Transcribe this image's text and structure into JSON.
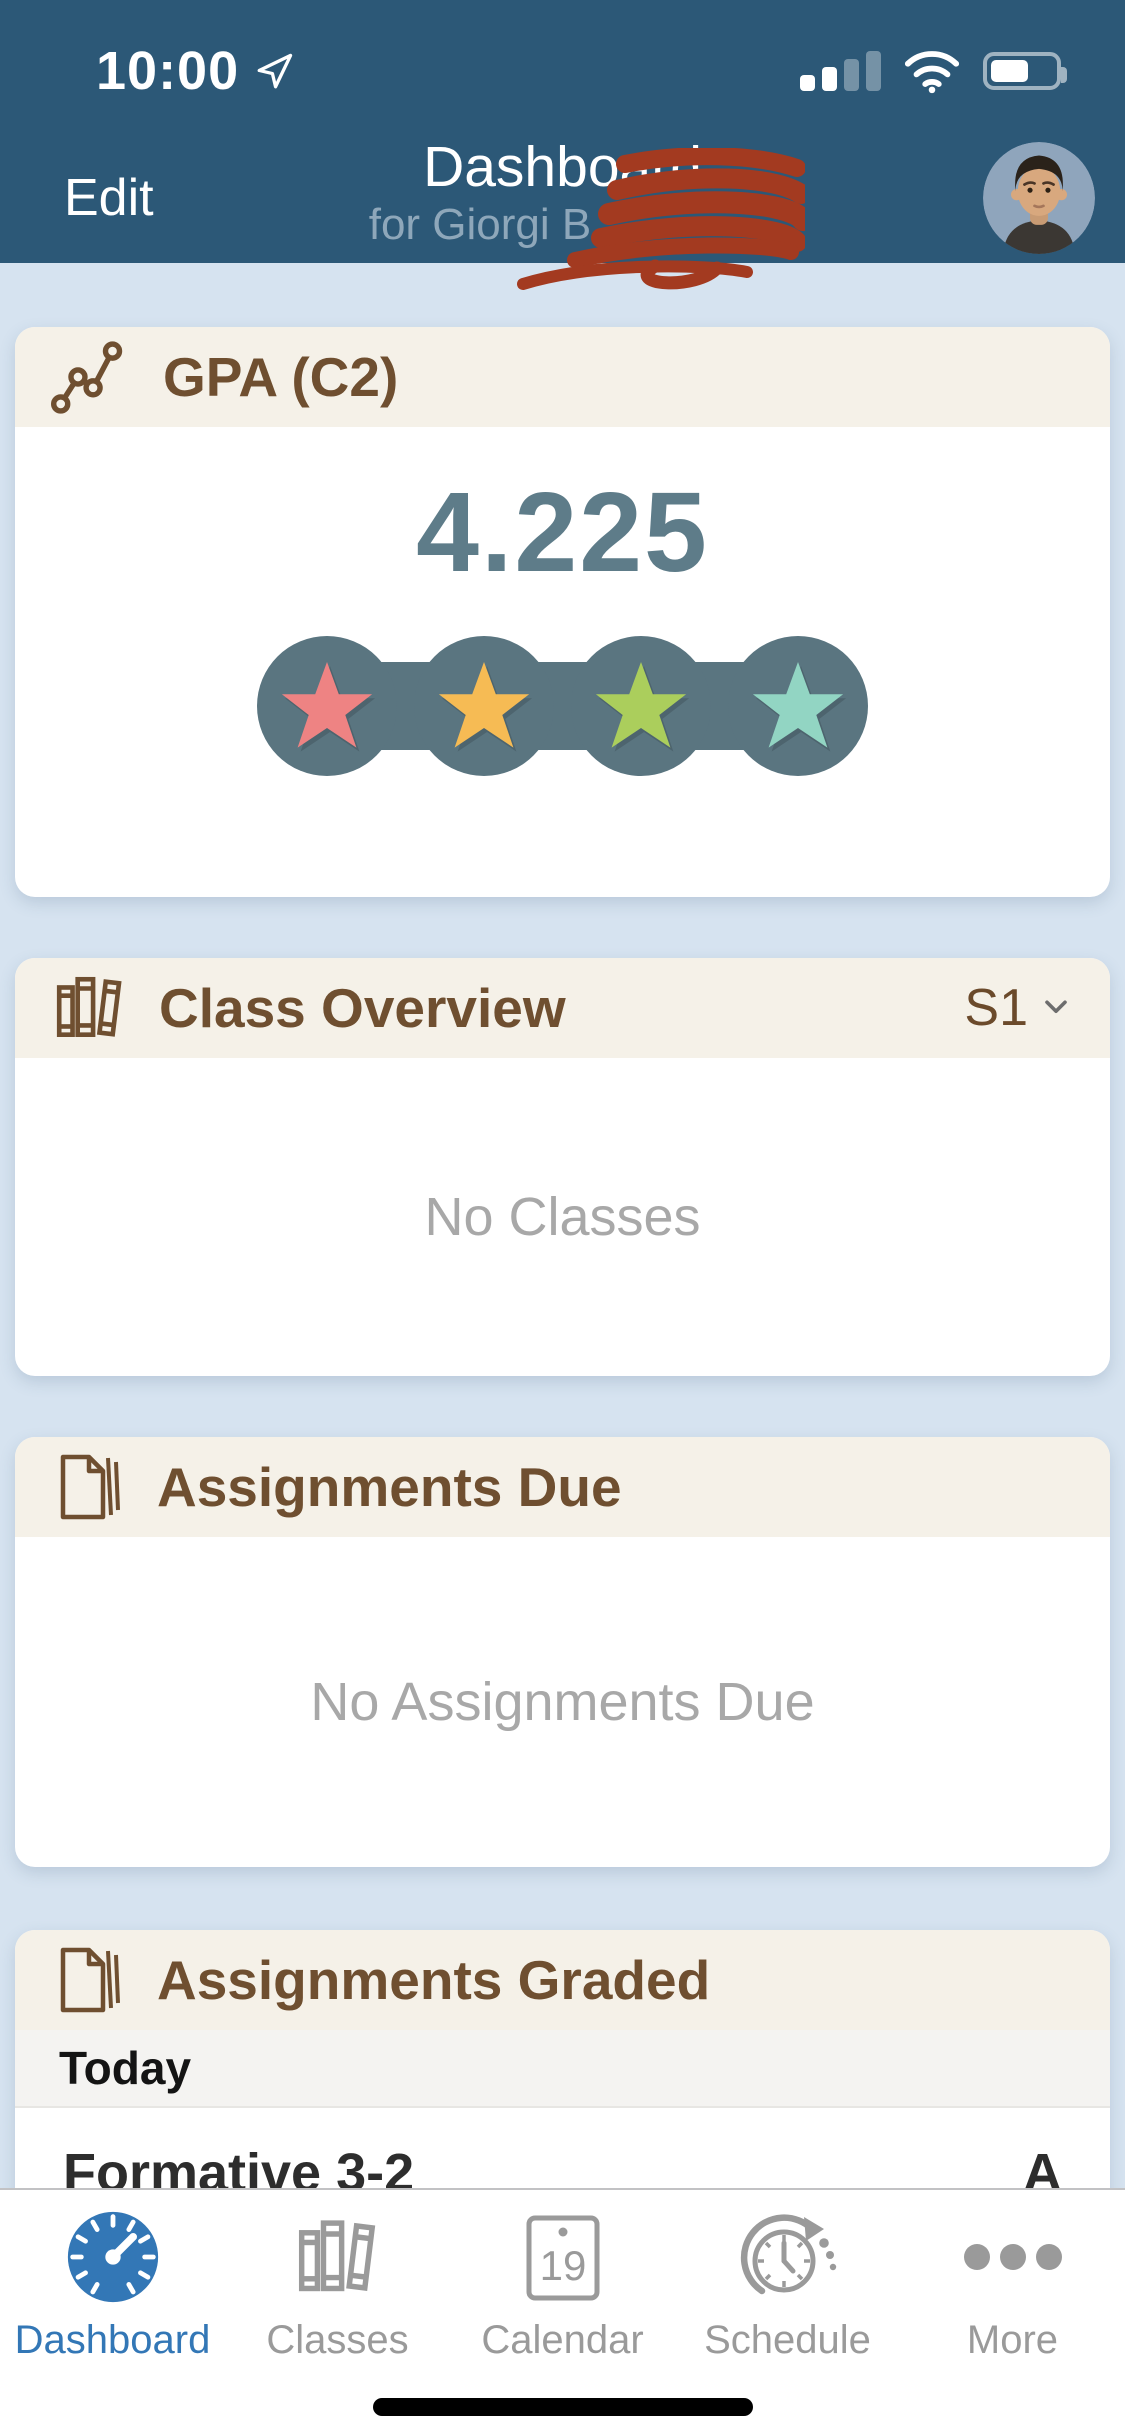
{
  "status_bar": {
    "time": "10:00",
    "location_icon": "location-arrow-icon",
    "signal_bars_filled": 2,
    "signal_bars_total": 4,
    "wifi": "full",
    "battery_percent": 60
  },
  "nav": {
    "edit_label": "Edit",
    "title": "Dashboard",
    "subtitle": "for Giorgi B",
    "avatar": "student-photo",
    "redaction": {
      "type": "scribble",
      "color": "#A33A20"
    }
  },
  "cards": {
    "gpa": {
      "icon": "line-chart-icon",
      "title": "GPA (C2)",
      "value": "4.225",
      "stars": [
        {
          "name": "star-red",
          "color": "#EE8383"
        },
        {
          "name": "star-orange",
          "color": "#F6BB54"
        },
        {
          "name": "star-green",
          "color": "#ABCE5C"
        },
        {
          "name": "star-teal",
          "color": "#92D5C3"
        }
      ],
      "track_color": "#5A7580"
    },
    "class_overview": {
      "icon": "books-icon",
      "title": "Class Overview",
      "term_selector": "S1",
      "empty_text": "No Classes"
    },
    "assignments_due": {
      "icon": "pages-icon",
      "title": "Assignments Due",
      "empty_text": "No Assignments Due"
    },
    "assignments_graded": {
      "icon": "pages-icon",
      "title": "Assignments Graded",
      "sections": [
        {
          "header": "Today",
          "rows": [
            {
              "assignment": "Formative 3-2",
              "grade": "A"
            }
          ]
        }
      ]
    }
  },
  "tab_bar": {
    "items": [
      {
        "label": "Dashboard",
        "icon": "gauge-icon",
        "active": true
      },
      {
        "label": "Classes",
        "icon": "books-icon",
        "active": false
      },
      {
        "label": "Calendar",
        "icon": "calendar-icon",
        "day": "19",
        "active": false
      },
      {
        "label": "Schedule",
        "icon": "schedule-icon",
        "active": false
      },
      {
        "label": "More",
        "icon": "more-icon",
        "active": false
      }
    ]
  },
  "colors": {
    "navbar": "#2C5877",
    "background": "#D6E3F0",
    "card_header": "#F5F1E8",
    "accent_brown": "#6F4F30",
    "gpa_value": "#5E7C89",
    "star_track": "#5A7580",
    "tab_active": "#3377B6",
    "tab_inactive": "#9A9A9A",
    "empty_text": "#A8A8A8",
    "scribble": "#A33A20"
  }
}
